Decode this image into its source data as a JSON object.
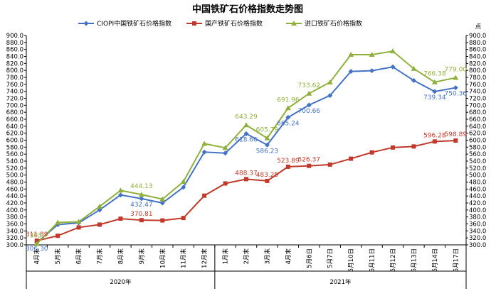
{
  "chart_data": {
    "type": "line",
    "title": "中国铁矿石价格指数走势图",
    "yunit": "点",
    "ylim": [
      300,
      900
    ],
    "ystep": 20,
    "grid": false,
    "legend_position": "top",
    "categories": [
      "4月末",
      "5月末",
      "6月末",
      "7月末",
      "8月末",
      "9月末",
      "10月末",
      "11月末",
      "12月末",
      "1月末",
      "2月末",
      "3月末",
      "4月末",
      "5月6日",
      "5月7日",
      "5月10日",
      "5月11日",
      "5月12日",
      "5月13日",
      "5月14日",
      "5月17日"
    ],
    "year_groups": [
      {
        "label": "2020年",
        "start": 0,
        "end": 8
      },
      {
        "label": "2021年",
        "start": 9,
        "end": 20
      }
    ],
    "series": [
      {
        "name": "CIOPI中国铁矿石价格指数",
        "color": "#4472c4",
        "marker": "diamond",
        "values": [
          306.3,
          358,
          363,
          400,
          443,
          432.47,
          420,
          465,
          566,
          563,
          618.66,
          586.23,
          665.24,
          700.66,
          728,
          797,
          799,
          810,
          771,
          739.34,
          750.36
        ],
        "labels": [
          {
            "i": 0,
            "text": "306.30"
          },
          {
            "i": 5,
            "text": "432.47"
          },
          {
            "i": 10,
            "text": "618.66"
          },
          {
            "i": 11,
            "text": "586.23"
          },
          {
            "i": 12,
            "text": "665.24"
          },
          {
            "i": 13,
            "text": "700.66"
          },
          {
            "i": 19,
            "text": "739.34"
          },
          {
            "i": 20,
            "text": "750.36"
          }
        ]
      },
      {
        "name": "国产铁矿石价格指数",
        "color": "#c0392b",
        "marker": "square",
        "values": [
          311.89,
          326,
          350,
          358,
          375,
          370.81,
          370,
          377,
          441,
          476,
          488.37,
          483.25,
          523.89,
          526.37,
          530,
          547,
          565,
          579,
          582,
          596.28,
          598.89
        ],
        "labels": [
          {
            "i": 0,
            "text": "311.89"
          },
          {
            "i": 5,
            "text": "370.81"
          },
          {
            "i": 10,
            "text": "488.37"
          },
          {
            "i": 11,
            "text": "483.25"
          },
          {
            "i": 12,
            "text": "523.89"
          },
          {
            "i": 13,
            "text": "526.37"
          },
          {
            "i": 19,
            "text": "596.28"
          },
          {
            "i": 20,
            "text": "598.89"
          }
        ]
      },
      {
        "name": "进口铁矿石价格指数",
        "color": "#8fb13c",
        "marker": "triangle",
        "values": [
          303,
          364,
          366,
          410,
          456,
          444.13,
          431,
          481,
          590,
          578,
          643.29,
          605.79,
          692,
          733.62,
          766,
          845,
          845,
          855,
          805,
          766.38,
          779
        ],
        "labels": [
          {
            "i": 0,
            "text": "303."
          },
          {
            "i": 5,
            "text": "444.13"
          },
          {
            "i": 10,
            "text": "643.29"
          },
          {
            "i": 11,
            "text": "605.79"
          },
          {
            "i": 12,
            "text": "691.96"
          },
          {
            "i": 13,
            "text": "733.62"
          },
          {
            "i": 19,
            "text": "766.38"
          },
          {
            "i": 20,
            "text": "779.00"
          }
        ]
      }
    ]
  }
}
